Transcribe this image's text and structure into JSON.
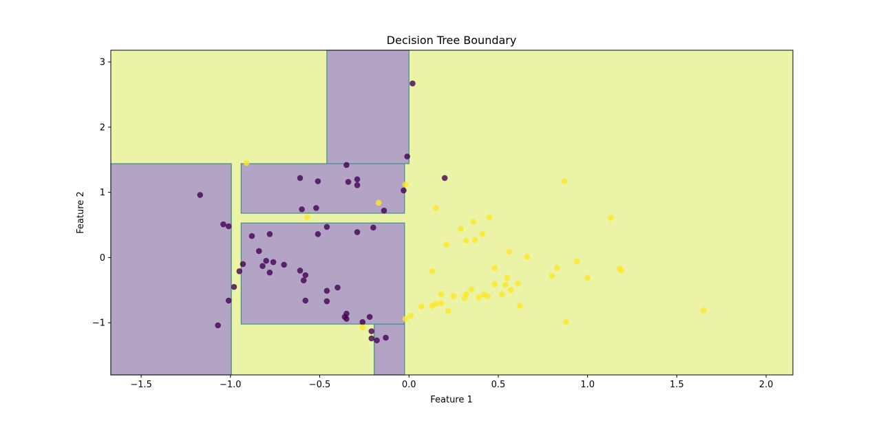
{
  "chart_data": {
    "type": "scatter",
    "title": "Decision Tree Boundary",
    "xlabel": "Feature 1",
    "ylabel": "Feature 2",
    "xlim": [
      -1.67,
      2.15
    ],
    "ylim": [
      -1.8,
      3.18
    ],
    "xticks": [
      -1.5,
      -1.0,
      -0.5,
      0.0,
      0.5,
      1.0,
      1.5,
      2.0
    ],
    "xtick_labels": [
      "−1.5",
      "−1.0",
      "−0.5",
      "0.0",
      "0.5",
      "1.0",
      "1.5",
      "2.0"
    ],
    "yticks": [
      -1,
      0,
      1,
      2,
      3
    ],
    "ytick_labels": [
      "−1",
      "0",
      "1",
      "2",
      "3"
    ],
    "grid": false,
    "colors": {
      "class_0_point": "#440154",
      "class_1_point": "#fde725",
      "class_0_region": "#b3a4c6",
      "class_1_region": "#ebf3a6",
      "boundary": "#3b8f8a"
    },
    "decision_regions_class_0": [
      {
        "x": [
          -1.67,
          -0.995
        ],
        "y": [
          -1.8,
          1.44
        ]
      },
      {
        "x": [
          -0.94,
          -0.025
        ],
        "y": [
          0.68,
          1.44
        ]
      },
      {
        "x": [
          -0.46,
          0.0
        ],
        "y": [
          1.44,
          3.18
        ]
      },
      {
        "x": [
          -0.94,
          -0.025
        ],
        "y": [
          -1.02,
          0.53
        ]
      },
      {
        "x": [
          -0.195,
          -0.025
        ],
        "y": [
          -1.8,
          -1.02
        ]
      }
    ],
    "series": [
      {
        "class": 0,
        "points": [
          [
            0.02,
            2.67
          ],
          [
            -0.01,
            1.55
          ],
          [
            0.2,
            1.22
          ],
          [
            -0.35,
            1.42
          ],
          [
            -0.61,
            1.22
          ],
          [
            -0.51,
            1.17
          ],
          [
            -0.34,
            1.16
          ],
          [
            -0.29,
            1.2
          ],
          [
            -0.29,
            1.11
          ],
          [
            -0.03,
            1.03
          ],
          [
            -0.6,
            0.74
          ],
          [
            -0.52,
            0.76
          ],
          [
            -0.14,
            0.72
          ],
          [
            -1.17,
            0.96
          ],
          [
            -1.04,
            0.51
          ],
          [
            -1.01,
            0.48
          ],
          [
            -0.46,
            0.47
          ],
          [
            -0.2,
            0.46
          ],
          [
            -0.29,
            0.39
          ],
          [
            -0.51,
            0.36
          ],
          [
            -0.88,
            0.33
          ],
          [
            -0.78,
            0.36
          ],
          [
            -0.84,
            0.1
          ],
          [
            -0.8,
            -0.05
          ],
          [
            -0.76,
            -0.07
          ],
          [
            -0.82,
            -0.13
          ],
          [
            -0.7,
            -0.11
          ],
          [
            -0.93,
            -0.1
          ],
          [
            -0.95,
            -0.21
          ],
          [
            -0.78,
            -0.23
          ],
          [
            -0.61,
            -0.2
          ],
          [
            -0.58,
            -0.27
          ],
          [
            -0.59,
            -0.35
          ],
          [
            -0.98,
            -0.45
          ],
          [
            -1.01,
            -0.66
          ],
          [
            -0.58,
            -0.66
          ],
          [
            -0.46,
            -0.51
          ],
          [
            -0.4,
            -0.46
          ],
          [
            -0.46,
            -0.67
          ],
          [
            -0.35,
            -0.86
          ],
          [
            -0.36,
            -0.91
          ],
          [
            -0.35,
            -0.94
          ],
          [
            -0.26,
            -0.99
          ],
          [
            -0.22,
            -0.91
          ],
          [
            -1.07,
            -1.04
          ],
          [
            -0.21,
            -1.13
          ],
          [
            -0.21,
            -1.24
          ],
          [
            -0.18,
            -1.27
          ],
          [
            -0.13,
            -1.23
          ]
        ]
      },
      {
        "class": 1,
        "points": [
          [
            -0.91,
            1.45
          ],
          [
            0.87,
            1.17
          ],
          [
            -0.02,
            1.12
          ],
          [
            -0.17,
            0.84
          ],
          [
            0.15,
            0.76
          ],
          [
            -0.57,
            0.62
          ],
          [
            1.13,
            0.61
          ],
          [
            0.45,
            0.62
          ],
          [
            0.36,
            0.55
          ],
          [
            0.29,
            0.44
          ],
          [
            0.41,
            0.36
          ],
          [
            0.32,
            0.26
          ],
          [
            0.37,
            0.27
          ],
          [
            0.21,
            0.2
          ],
          [
            0.56,
            0.09
          ],
          [
            0.66,
            0.01
          ],
          [
            0.94,
            -0.06
          ],
          [
            0.48,
            -0.16
          ],
          [
            0.83,
            -0.16
          ],
          [
            1.18,
            -0.17
          ],
          [
            1.19,
            -0.2
          ],
          [
            0.13,
            -0.21
          ],
          [
            0.8,
            -0.28
          ],
          [
            1.0,
            -0.31
          ],
          [
            0.55,
            -0.31
          ],
          [
            0.61,
            -0.4
          ],
          [
            0.48,
            -0.41
          ],
          [
            0.54,
            -0.42
          ],
          [
            0.35,
            -0.49
          ],
          [
            0.57,
            -0.5
          ],
          [
            0.52,
            -0.56
          ],
          [
            0.42,
            -0.57
          ],
          [
            0.18,
            -0.56
          ],
          [
            0.25,
            -0.59
          ],
          [
            0.32,
            -0.56
          ],
          [
            0.44,
            -0.59
          ],
          [
            0.31,
            -0.62
          ],
          [
            0.39,
            -0.61
          ],
          [
            0.15,
            -0.71
          ],
          [
            0.18,
            -0.7
          ],
          [
            0.13,
            -0.74
          ],
          [
            0.07,
            -0.75
          ],
          [
            0.62,
            -0.74
          ],
          [
            0.22,
            -0.82
          ],
          [
            1.65,
            -0.81
          ],
          [
            0.01,
            -0.89
          ],
          [
            -0.02,
            -0.94
          ],
          [
            0.88,
            -0.99
          ],
          [
            -0.26,
            -1.07
          ]
        ]
      }
    ]
  }
}
